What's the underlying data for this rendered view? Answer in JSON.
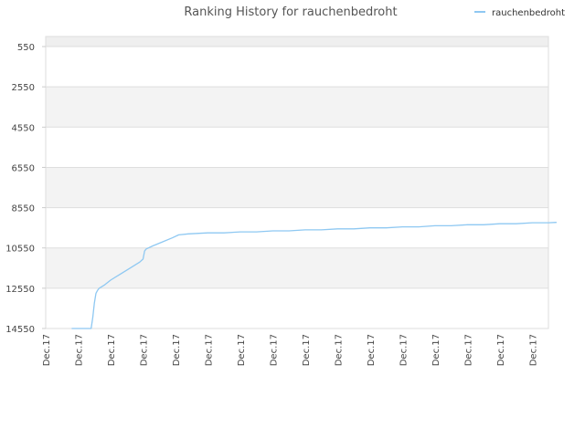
{
  "chart_data": {
    "type": "line",
    "title": "Ranking History for rauchenbedroht",
    "xlabel": "",
    "ylabel": "",
    "y_inverted": true,
    "ylim": [
      14550,
      50
    ],
    "yticks": [
      "550",
      "2550",
      "4550",
      "6550",
      "8550",
      "10550",
      "12550",
      "14550"
    ],
    "x_ticks": [
      "Dec.17",
      "Dec.17",
      "Dec.17",
      "Dec.17",
      "Dec.17",
      "Dec.17",
      "Dec.17",
      "Dec.17",
      "Dec.17",
      "Dec.17",
      "Dec.17",
      "Dec.17",
      "Dec.17",
      "Dec.17",
      "Dec.17",
      "Dec.17"
    ],
    "grid": true,
    "legend_position": "top-right",
    "series": [
      {
        "name": "rauchenbedroht",
        "color": "#8ec8f2",
        "x_index": [
          0.8,
          1.4,
          1.45,
          1.5,
          1.55,
          1.6,
          1.65,
          1.7,
          1.8,
          2.0,
          2.3,
          2.6,
          2.9,
          3.0,
          3.05,
          3.1,
          3.3,
          3.6,
          3.9,
          4.1,
          4.4,
          5.0,
          5.5,
          6.0,
          6.5,
          7.0,
          7.5,
          8.0,
          8.5,
          9.0,
          9.5,
          10.0,
          10.5,
          11.0,
          11.5,
          12.0,
          12.5,
          13.0,
          13.5,
          14.0,
          14.5,
          15.0,
          15.5,
          15.75
        ],
        "values": [
          14550,
          14550,
          14000,
          13300,
          12800,
          12650,
          12550,
          12500,
          12400,
          12150,
          11850,
          11550,
          11250,
          11100,
          10700,
          10600,
          10450,
          10250,
          10050,
          9900,
          9850,
          9800,
          9800,
          9750,
          9750,
          9700,
          9700,
          9650,
          9650,
          9600,
          9600,
          9550,
          9550,
          9500,
          9500,
          9450,
          9450,
          9400,
          9400,
          9350,
          9350,
          9300,
          9300,
          9280
        ]
      }
    ]
  }
}
